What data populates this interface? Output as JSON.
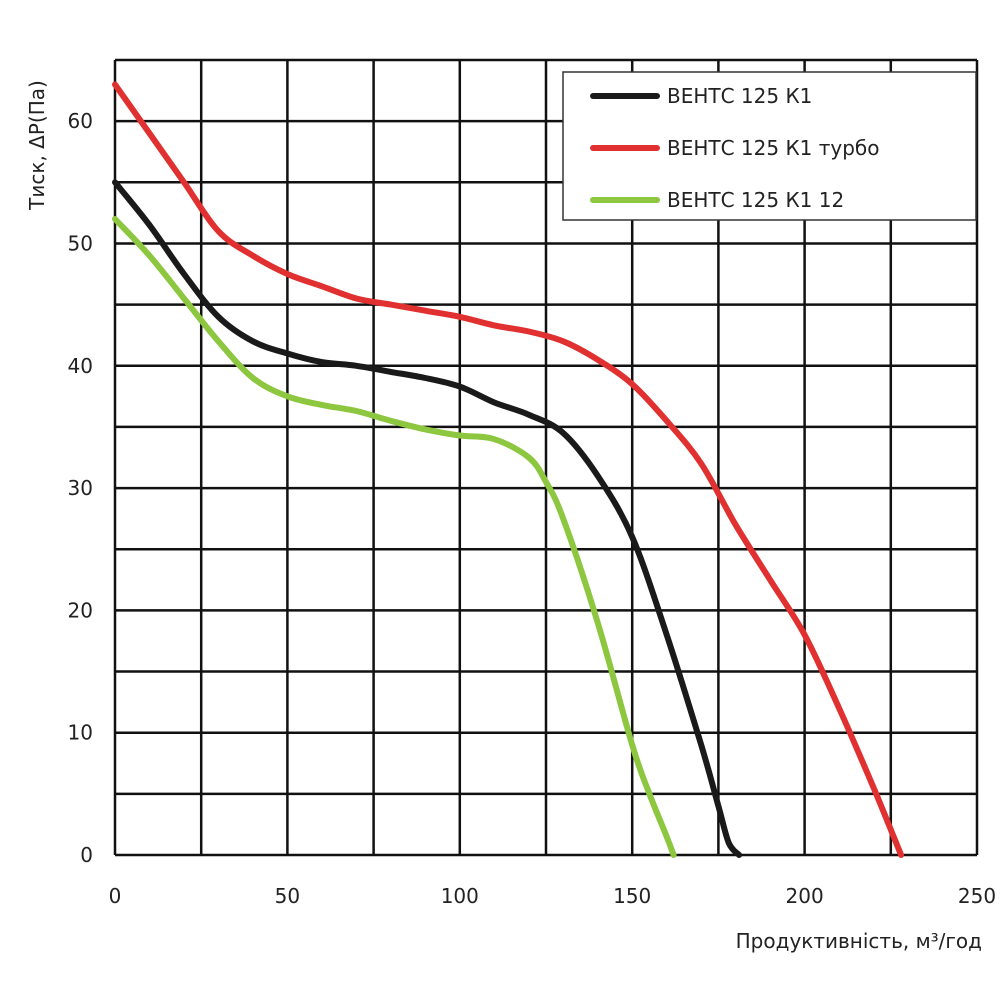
{
  "chart_data": {
    "type": "line",
    "title": "",
    "xlabel": "Продуктивність, м³/год",
    "ylabel": "Тиск, ΔP(Па)",
    "xlim": [
      0,
      250
    ],
    "ylim": [
      0,
      65
    ],
    "x_ticks": [
      0,
      50,
      100,
      150,
      200,
      250
    ],
    "y_ticks": [
      0,
      10,
      20,
      30,
      40,
      50,
      60
    ],
    "x_grid": [
      0,
      25,
      50,
      75,
      100,
      125,
      150,
      175,
      200,
      225,
      250
    ],
    "y_grid": [
      0,
      5,
      10,
      15,
      20,
      25,
      30,
      35,
      40,
      45,
      50,
      55,
      60,
      65
    ],
    "grid": true,
    "legend_position": "top-right",
    "series": [
      {
        "name": "ВЕНТС 125 К1",
        "color": "#1a1a1a",
        "points": [
          [
            0,
            55
          ],
          [
            10,
            51.5
          ],
          [
            20,
            47.5
          ],
          [
            30,
            44
          ],
          [
            40,
            42
          ],
          [
            50,
            41
          ],
          [
            60,
            40.3
          ],
          [
            70,
            40
          ],
          [
            80,
            39.5
          ],
          [
            90,
            39
          ],
          [
            100,
            38.3
          ],
          [
            110,
            37
          ],
          [
            120,
            36
          ],
          [
            130,
            34.5
          ],
          [
            140,
            31
          ],
          [
            150,
            26
          ],
          [
            160,
            18
          ],
          [
            170,
            9
          ],
          [
            175,
            4
          ],
          [
            178,
            1
          ],
          [
            181,
            0
          ]
        ]
      },
      {
        "name": "ВЕНТС 125 К1 турбо",
        "color": "#e03030",
        "points": [
          [
            0,
            63
          ],
          [
            10,
            59
          ],
          [
            20,
            55
          ],
          [
            30,
            51
          ],
          [
            40,
            49
          ],
          [
            50,
            47.5
          ],
          [
            60,
            46.5
          ],
          [
            70,
            45.5
          ],
          [
            80,
            45
          ],
          [
            90,
            44.5
          ],
          [
            100,
            44
          ],
          [
            110,
            43.3
          ],
          [
            120,
            42.8
          ],
          [
            130,
            42
          ],
          [
            140,
            40.5
          ],
          [
            150,
            38.5
          ],
          [
            160,
            35.5
          ],
          [
            170,
            32
          ],
          [
            180,
            27
          ],
          [
            190,
            22.5
          ],
          [
            200,
            18
          ],
          [
            210,
            12
          ],
          [
            220,
            5.5
          ],
          [
            228,
            0
          ]
        ]
      },
      {
        "name": "ВЕНТС 125 К1 12",
        "color": "#8dc63f",
        "points": [
          [
            0,
            52
          ],
          [
            10,
            49
          ],
          [
            20,
            45.5
          ],
          [
            30,
            42
          ],
          [
            40,
            39
          ],
          [
            50,
            37.5
          ],
          [
            60,
            36.8
          ],
          [
            70,
            36.3
          ],
          [
            80,
            35.5
          ],
          [
            90,
            34.8
          ],
          [
            100,
            34.3
          ],
          [
            110,
            34
          ],
          [
            120,
            32.5
          ],
          [
            125,
            30.5
          ],
          [
            130,
            27.5
          ],
          [
            140,
            19
          ],
          [
            150,
            9
          ],
          [
            155,
            5
          ],
          [
            160,
            1.5
          ],
          [
            162,
            0
          ]
        ]
      }
    ]
  }
}
